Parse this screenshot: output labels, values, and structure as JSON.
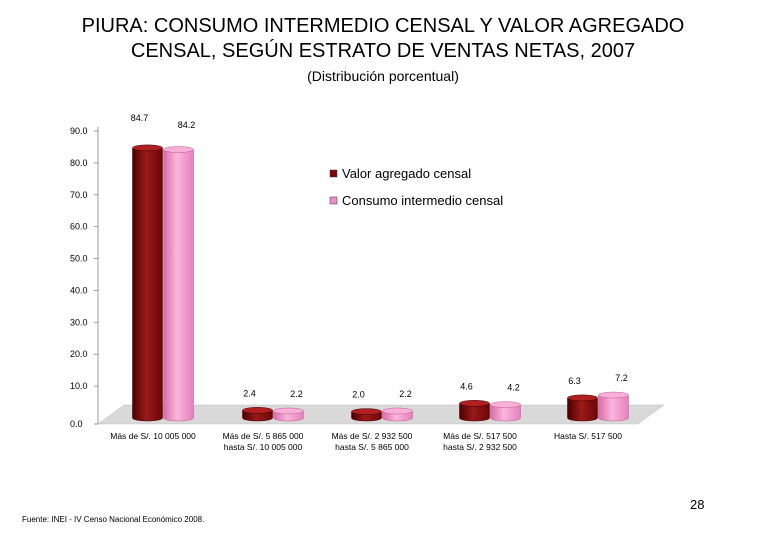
{
  "title_line1": "PIURA: CONSUMO INTERMEDIO CENSAL Y VALOR AGREGADO",
  "title_line2": "CENSAL, SEGÚN ESTRATO DE VENTAS NETAS, 2007",
  "subtitle": "(Distribución porcentual)",
  "footer_source": "Fuente: INEI - IV Censo Nacional Económico 2008.",
  "page_number": "28",
  "colors": {
    "valor_agregado": "#7a0a0a",
    "consumo_intermedio": "#f08cc8",
    "floor": "#d9d9d9"
  },
  "chart_data": {
    "type": "bar",
    "title": "",
    "xlabel": "",
    "ylabel": "",
    "ylim": [
      0,
      90
    ],
    "yticks": [
      "0.0",
      "10.0",
      "20.0",
      "30.0",
      "40.0",
      "50.0",
      "60.0",
      "70.0",
      "80.0",
      "90.0"
    ],
    "categories": [
      [
        "Más de S/. 10 005 000"
      ],
      [
        "Más de S/. 5 865 000",
        "hasta  S/. 10 005 000"
      ],
      [
        "Más de S/. 2 932 500",
        "hasta  S/. 5 865 000"
      ],
      [
        "Más de S/. 517 500",
        "hasta  S/. 2 932 500"
      ],
      [
        "Hasta S/. 517 500"
      ]
    ],
    "series": [
      {
        "name": "Valor agregado censal",
        "values": [
          84.7,
          2.4,
          2.0,
          4.6,
          6.3
        ],
        "labels": [
          "84.7",
          "2.4",
          "2.0",
          "4.6",
          "6.3"
        ]
      },
      {
        "name": "Consumo intermedio censal",
        "values": [
          84.2,
          2.2,
          2.2,
          4.2,
          7.2
        ],
        "labels": [
          "84.2",
          "2.2",
          "2.2",
          "4.2",
          "7.2"
        ]
      }
    ],
    "legend_position": "top-right",
    "grid": false
  }
}
